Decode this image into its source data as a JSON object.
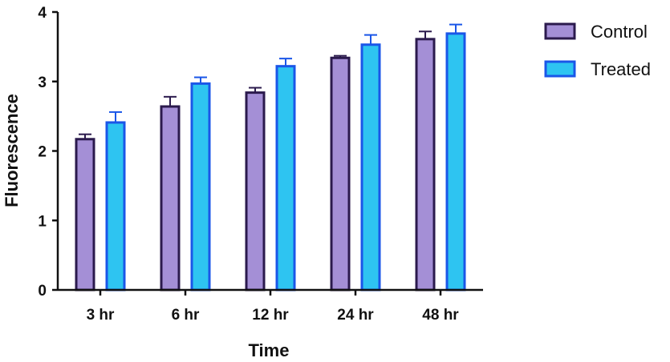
{
  "chart_data": {
    "type": "bar",
    "title": "",
    "xlabel": "Time",
    "ylabel": "Fluorescence",
    "ylim": [
      0,
      4
    ],
    "yticks": [
      "0",
      "1",
      "2",
      "3",
      "4"
    ],
    "categories": [
      "3 hr",
      "6 hr",
      "12 hr",
      "24 hr",
      "48 hr"
    ],
    "series": [
      {
        "name": "Control",
        "values": [
          2.17,
          2.64,
          2.84,
          3.34,
          3.61
        ],
        "errors": [
          0.07,
          0.14,
          0.07,
          0.03,
          0.11
        ],
        "fill": "#a48fd6",
        "stroke": "#2b1a4d"
      },
      {
        "name": "Treated",
        "values": [
          2.41,
          2.97,
          3.22,
          3.53,
          3.69
        ],
        "errors": [
          0.15,
          0.09,
          0.11,
          0.14,
          0.13
        ],
        "fill": "#2ec4f1",
        "stroke": "#1a56e8"
      }
    ],
    "grid": false,
    "legend": "top-right"
  }
}
